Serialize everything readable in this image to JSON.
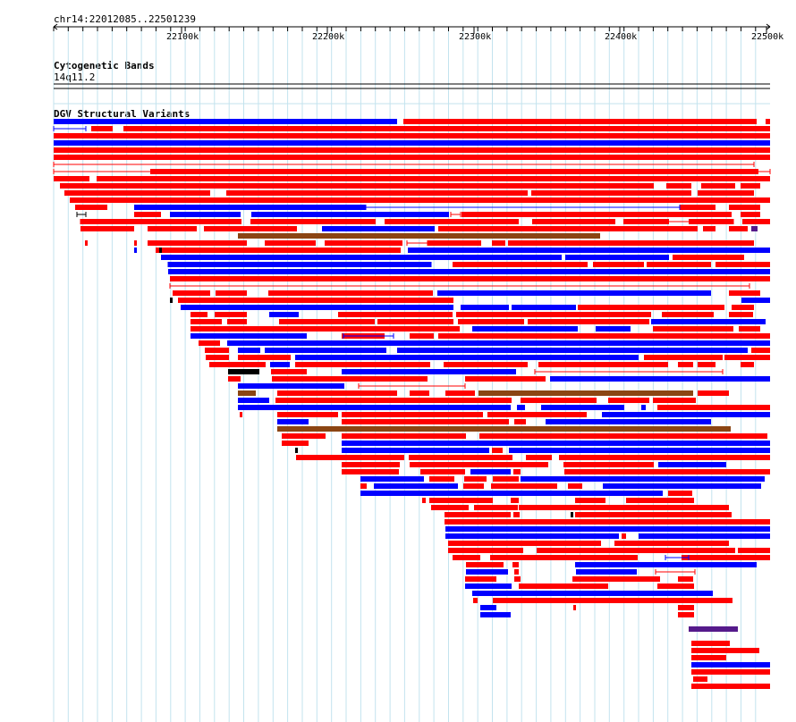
{
  "region": {
    "label": "chr14:22012085..22501239"
  },
  "ruler": {
    "ticks": [
      "22100k",
      "22200k",
      "22300k",
      "22400k",
      "22500k"
    ]
  },
  "tracks": {
    "cytoband": {
      "title": "Cytogenetic Bands",
      "band": "14q11.2"
    },
    "dgv": {
      "title": "DGV Structural Variants"
    }
  },
  "colors": {
    "loss": "#ff0000",
    "gain": "#0000ff",
    "inversion": "#8b4513",
    "complex": "#551a8b",
    "other": "#000000",
    "grid": "#c3e3ee"
  }
}
